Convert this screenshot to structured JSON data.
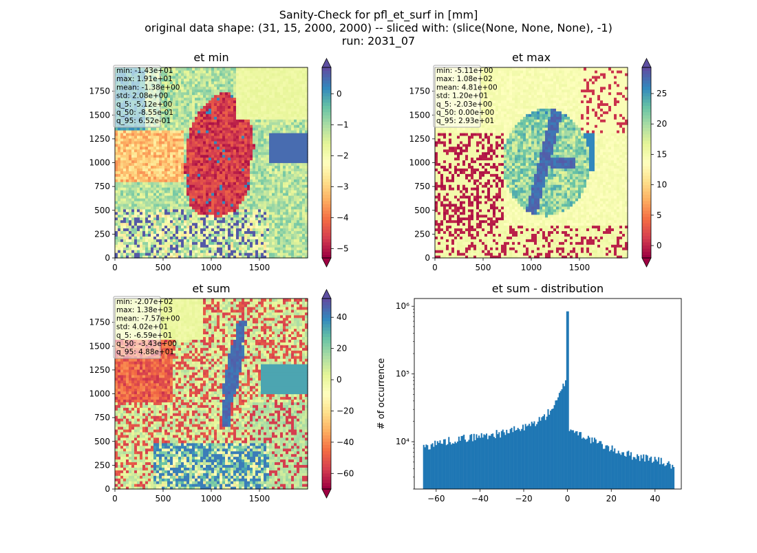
{
  "figure": {
    "title_lines": [
      "Sanity-Check for pfl_et_surf in [mm]",
      "original data shape: (31, 15, 2000, 2000) -- sliced with: (slice(None, None, None), -1)",
      "run: 2031_07"
    ]
  },
  "panels": [
    {
      "id": "et-min",
      "title": "et min",
      "stats": [
        "min: -1.43e+01",
        "max: 1.91e+01",
        "mean: -1.38e+00",
        "std: 2.08e+00",
        "q_5: -5.12e+00",
        "q_50: -8.55e-01",
        "q_95: 6.52e-01"
      ],
      "xticks": [
        "0",
        "500",
        "1000",
        "1500"
      ],
      "yticks": [
        "0",
        "250",
        "500",
        "750",
        "1000",
        "1250",
        "1500",
        "1750"
      ],
      "colorbar": {
        "vmin": -5.3,
        "vmax": 0.85,
        "ticks": [
          "0",
          "−1",
          "−2",
          "−3",
          "−4",
          "−5"
        ],
        "tick_values": [
          0,
          -1,
          -2,
          -3,
          -4,
          -5
        ]
      }
    },
    {
      "id": "et-max",
      "title": "et max",
      "stats": [
        "min: -5.11e+00",
        "max: 1.08e+02",
        "mean: 4.81e+00",
        "std: 1.20e+01",
        "q_5: -2.03e+00",
        "q_50: 0.00e+00",
        "q_95: 2.93e+01"
      ],
      "xticks": [
        "0",
        "500",
        "1000",
        "1500"
      ],
      "yticks": [
        "0",
        "250",
        "500",
        "750",
        "1000",
        "1250",
        "1500",
        "1750"
      ],
      "colorbar": {
        "vmin": -2.03,
        "vmax": 29.3,
        "ticks": [
          "25",
          "20",
          "15",
          "10",
          "5",
          "0"
        ],
        "tick_values": [
          25,
          20,
          15,
          10,
          5,
          0
        ]
      }
    },
    {
      "id": "et-sum",
      "title": "et sum",
      "stats": [
        "min: -2.07e+02",
        "max: 1.38e+03",
        "mean: -7.57e+00",
        "std: 4.02e+01",
        "q_5: -6.59e+01",
        "q_50: -3.43e+00",
        "q_95: 4.88e+01"
      ],
      "xticks": [
        "0",
        "500",
        "1000",
        "1500"
      ],
      "yticks": [
        "0",
        "250",
        "500",
        "750",
        "1000",
        "1250",
        "1500",
        "1750"
      ],
      "colorbar": {
        "vmin": -70,
        "vmax": 52,
        "ticks": [
          "40",
          "20",
          "0",
          "−20",
          "−40",
          "−60"
        ],
        "tick_values": [
          40,
          20,
          0,
          -20,
          -40,
          -60
        ]
      }
    }
  ],
  "histogram": {
    "title": "et sum - distribution",
    "ylabel": "# of occurrence",
    "xticks": [
      "−60",
      "−40",
      "−20",
      "0",
      "20",
      "40"
    ],
    "xtick_values": [
      -60,
      -40,
      -20,
      0,
      20,
      40
    ],
    "yticks": [
      "10⁴",
      "10⁵",
      "10⁶"
    ]
  },
  "chart_data": [
    {
      "type": "heatmap",
      "title": "et min",
      "x_range": [
        0,
        2000
      ],
      "y_range": [
        0,
        2000
      ],
      "colormap": "Spectral",
      "color_range": [
        -5.3,
        0.85
      ]
    },
    {
      "type": "heatmap",
      "title": "et max",
      "x_range": [
        0,
        2000
      ],
      "y_range": [
        0,
        2000
      ],
      "colormap": "Spectral",
      "color_range": [
        -2.03,
        29.3
      ]
    },
    {
      "type": "heatmap",
      "title": "et sum",
      "x_range": [
        0,
        2000
      ],
      "y_range": [
        0,
        2000
      ],
      "colormap": "Spectral",
      "color_range": [
        -70,
        52
      ]
    },
    {
      "type": "bar",
      "title": "et sum - distribution",
      "ylabel": "# of occurrence",
      "yscale": "log",
      "xlim": [
        -70,
        52
      ],
      "ylim": [
        2000,
        1300000
      ],
      "bar_color": "#1f77b4",
      "bin_range": [
        -66,
        48.8
      ],
      "profile": {
        "x": [
          -66,
          -60,
          -50,
          -40,
          -30,
          -20,
          -15,
          -10,
          -5,
          -2,
          -0.5,
          0,
          0.5,
          1,
          5,
          10,
          20,
          30,
          40,
          48.8
        ],
        "count": [
          8200,
          9500,
          11000,
          12000,
          13500,
          16000,
          19000,
          24000,
          38000,
          65000,
          90000,
          840000,
          16000,
          15500,
          13500,
          11000,
          7800,
          6200,
          5500,
          4300
        ]
      }
    }
  ]
}
